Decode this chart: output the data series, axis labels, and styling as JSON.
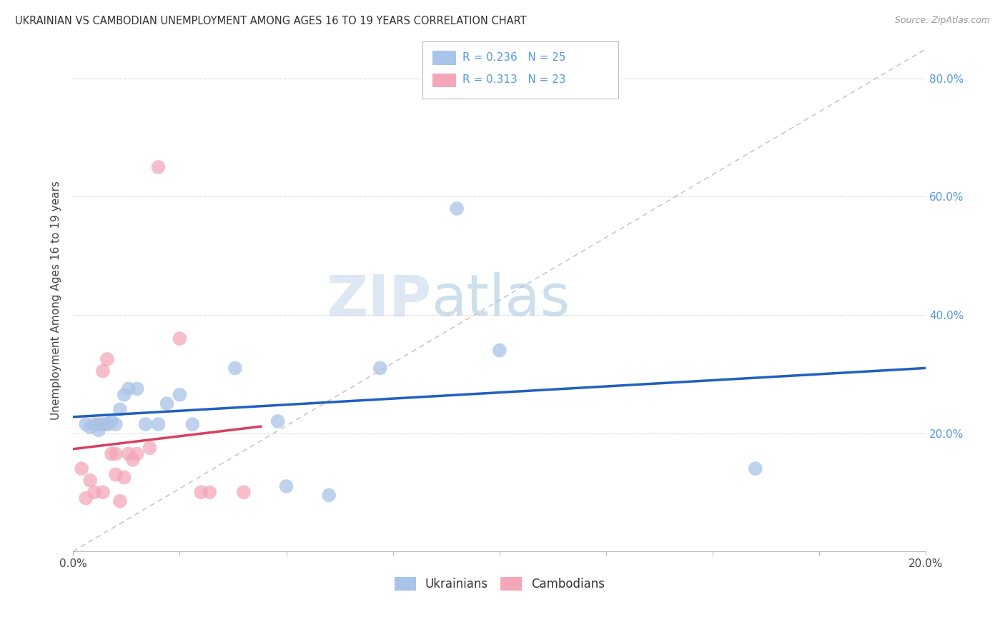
{
  "title": "UKRAINIAN VS CAMBODIAN UNEMPLOYMENT AMONG AGES 16 TO 19 YEARS CORRELATION CHART",
  "source": "Source: ZipAtlas.com",
  "ylabel": "Unemployment Among Ages 16 to 19 years",
  "xlim": [
    0.0,
    0.2
  ],
  "ylim": [
    0.0,
    0.85
  ],
  "x_ticks": [
    0.0,
    0.025,
    0.05,
    0.075,
    0.1,
    0.125,
    0.15,
    0.175,
    0.2
  ],
  "x_tick_labels": [
    "0.0%",
    "",
    "",
    "",
    "",
    "",
    "",
    "",
    "20.0%"
  ],
  "y_ticks": [
    0.0,
    0.2,
    0.4,
    0.6,
    0.8
  ],
  "y_tick_labels_right": [
    "",
    "20.0%",
    "40.0%",
    "60.0%",
    "80.0%"
  ],
  "ukrainian_x": [
    0.003,
    0.004,
    0.005,
    0.006,
    0.007,
    0.008,
    0.009,
    0.01,
    0.011,
    0.012,
    0.013,
    0.015,
    0.017,
    0.02,
    0.022,
    0.025,
    0.028,
    0.038,
    0.048,
    0.05,
    0.06,
    0.072,
    0.09,
    0.1,
    0.16
  ],
  "ukrainian_y": [
    0.215,
    0.21,
    0.215,
    0.205,
    0.215,
    0.215,
    0.22,
    0.215,
    0.24,
    0.265,
    0.275,
    0.275,
    0.215,
    0.215,
    0.25,
    0.265,
    0.215,
    0.31,
    0.22,
    0.11,
    0.095,
    0.31,
    0.58,
    0.34,
    0.14
  ],
  "cambodian_x": [
    0.002,
    0.003,
    0.004,
    0.005,
    0.006,
    0.007,
    0.007,
    0.008,
    0.008,
    0.009,
    0.01,
    0.01,
    0.011,
    0.012,
    0.013,
    0.014,
    0.015,
    0.018,
    0.02,
    0.025,
    0.03,
    0.032,
    0.04
  ],
  "cambodian_y": [
    0.14,
    0.09,
    0.12,
    0.1,
    0.215,
    0.1,
    0.305,
    0.215,
    0.325,
    0.165,
    0.13,
    0.165,
    0.085,
    0.125,
    0.165,
    0.155,
    0.165,
    0.175,
    0.65,
    0.36,
    0.1,
    0.1,
    0.1
  ],
  "ukr_R": "0.236",
  "ukr_N": "25",
  "cam_R": "0.313",
  "cam_N": "23",
  "ukr_color": "#A8C4E8",
  "cam_color": "#F4A7B9",
  "ukr_line_color": "#2060C0",
  "cam_line_color": "#D84060",
  "ref_line_color": "#C0C0C0",
  "watermark_zip": "#C8D8EE",
  "watermark_atlas": "#A0C0E0",
  "background_color": "#FFFFFF",
  "grid_color": "#DDDDDD",
  "tick_color": "#5599DD",
  "legend_box_color": "#DDDDDD"
}
